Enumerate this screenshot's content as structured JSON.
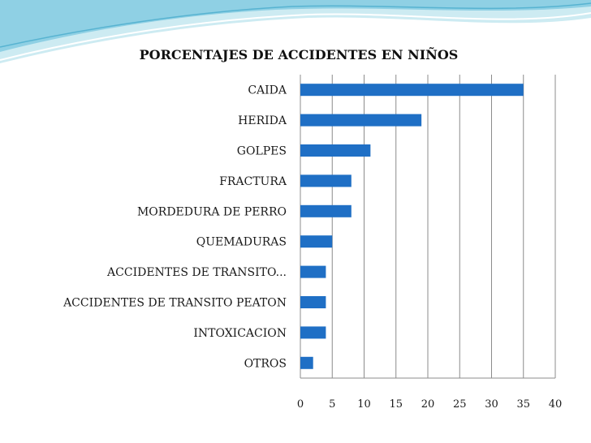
{
  "chart_data": {
    "type": "bar",
    "orientation": "horizontal",
    "title": "PORCENTAJES DE ACCIDENTES EN NIÑOS",
    "xlabel": "",
    "ylabel": "",
    "categories": [
      "CAIDA",
      "HERIDA",
      "GOLPES",
      "FRACTURA",
      "MORDEDURA DE PERRO",
      "QUEMADURAS",
      "ACCIDENTES DE TRANSITO...",
      "ACCIDENTES DE TRANSITO PEATON",
      "INTOXICACION",
      "OTROS"
    ],
    "values": [
      35,
      19,
      11,
      8,
      8,
      5,
      4,
      4,
      4,
      2
    ],
    "xlim": [
      0,
      40
    ],
    "xticks": [
      "0",
      "5",
      "10",
      "15",
      "20",
      "25",
      "30",
      "35",
      "40"
    ],
    "grid": "vertical",
    "legend": "none",
    "bar_color": "#1F6FC5",
    "grid_color": "#8C8C8C"
  },
  "decoration": {
    "wave_color_light": "#CDEBF2",
    "wave_color_mid": "#8FD0E4",
    "wave_color_dark": "#3FA7C9"
  }
}
